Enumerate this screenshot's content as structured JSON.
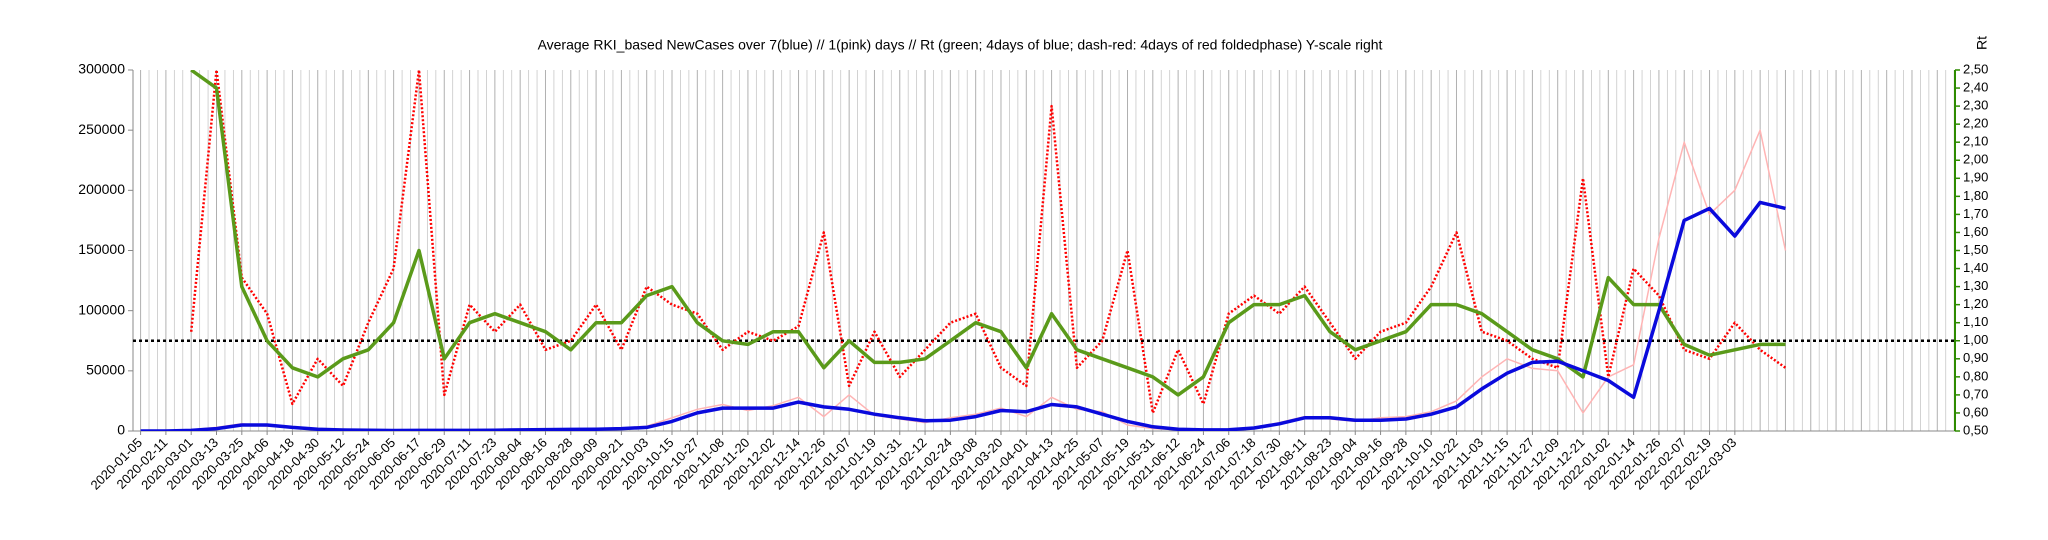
{
  "chart_data": {
    "type": "line",
    "title": "Average RKI_based NewCases over 7(blue) // 1(pink) days //  Rt (green; 4days of blue; dash-red: 4days of red foldedphase) Y-scale right",
    "y2_label": "Rt",
    "categories": [
      "2020-01-05",
      "2020-02-11",
      "2020-03-01",
      "2020-03-13",
      "2020-03-25",
      "2020-04-06",
      "2020-04-18",
      "2020-04-30",
      "2020-05-12",
      "2020-05-24",
      "2020-06-05",
      "2020-06-17",
      "2020-06-29",
      "2020-07-11",
      "2020-07-23",
      "2020-08-04",
      "2020-08-16",
      "2020-08-28",
      "2020-09-09",
      "2020-09-21",
      "2020-10-03",
      "2020-10-15",
      "2020-10-27",
      "2020-11-08",
      "2020-11-20",
      "2020-12-02",
      "2020-12-14",
      "2020-12-26",
      "2021-01-07",
      "2021-01-19",
      "2021-01-31",
      "2021-02-12",
      "2021-02-24",
      "2021-03-08",
      "2021-03-20",
      "2021-04-01",
      "2021-04-13",
      "2021-04-25",
      "2021-05-07",
      "2021-05-19",
      "2021-05-31",
      "2021-06-12",
      "2021-06-24",
      "2021-07-06",
      "2021-07-18",
      "2021-07-30",
      "2021-08-11",
      "2021-08-23",
      "2021-09-04",
      "2021-09-16",
      "2021-09-28",
      "2021-10-10",
      "2021-10-22",
      "2021-11-03",
      "2021-11-15",
      "2021-11-27",
      "2021-12-09",
      "2021-12-21",
      "2022-01-02",
      "2022-01-14",
      "2022-01-26",
      "2022-02-07",
      "2022-02-19",
      "2022-03-03",
      null,
      null,
      null,
      null,
      null,
      null,
      null,
      null
    ],
    "series": [
      {
        "color": "#ffb4b4",
        "values": [
          0,
          0,
          1000,
          3000,
          6000,
          4000,
          3500,
          1000,
          1000,
          500,
          300,
          800,
          400,
          600,
          800,
          1000,
          1500,
          1200,
          1800,
          2500,
          4000,
          11000,
          18000,
          22000,
          17000,
          21000,
          28000,
          12000,
          30000,
          13000,
          10000,
          7000,
          11000,
          14000,
          19000,
          12000,
          28000,
          18000,
          16000,
          5000,
          2000,
          1000,
          700,
          1200,
          3000,
          7000,
          12000,
          10000,
          8000,
          11000,
          12000,
          16000,
          25000,
          45000,
          60000,
          52000,
          50000,
          15000,
          45000,
          55000,
          160000,
          240000,
          180000,
          200000,
          250000,
          150000,
          null,
          null,
          null,
          null,
          null,
          null
        ]
      },
      {
        "color": "#ff0000",
        "axis": "y2",
        "dashed": true,
        "values": [
          null,
          null,
          1.05,
          2.5,
          1.35,
          1.15,
          0.65,
          0.9,
          0.75,
          1.1,
          1.4,
          2.5,
          0.7,
          1.2,
          1.05,
          1.2,
          0.95,
          1.0,
          1.2,
          0.95,
          1.3,
          1.2,
          1.15,
          0.95,
          1.05,
          1.0,
          1.08,
          1.6,
          0.75,
          1.05,
          0.8,
          0.95,
          1.1,
          1.15,
          0.85,
          0.75,
          2.3,
          0.85,
          1.0,
          1.5,
          0.6,
          0.95,
          0.65,
          1.15,
          1.25,
          1.15,
          1.3,
          1.1,
          0.9,
          1.05,
          1.1,
          1.3,
          1.6,
          1.05,
          1.0,
          0.9,
          0.85,
          1.9,
          0.8,
          1.4,
          1.25,
          0.95,
          0.9,
          1.1,
          0.95,
          0.85,
          null,
          null,
          null,
          null,
          null,
          null
        ]
      },
      {
        "color": "#5a9a1a",
        "axis": "y2",
        "values": [
          null,
          null,
          2.5,
          2.4,
          1.3,
          1.0,
          0.85,
          0.8,
          0.9,
          0.95,
          1.1,
          1.5,
          0.9,
          1.1,
          1.15,
          1.1,
          1.05,
          0.95,
          1.1,
          1.1,
          1.25,
          1.3,
          1.1,
          1.0,
          0.98,
          1.05,
          1.05,
          0.85,
          1.0,
          0.88,
          0.88,
          0.9,
          1.0,
          1.1,
          1.05,
          0.85,
          1.15,
          0.95,
          0.9,
          0.85,
          0.8,
          0.7,
          0.8,
          1.1,
          1.2,
          1.2,
          1.25,
          1.05,
          0.95,
          1.0,
          1.05,
          1.2,
          1.2,
          1.15,
          1.05,
          0.95,
          0.9,
          0.8,
          1.35,
          1.2,
          1.2,
          0.98,
          0.92,
          0.95,
          0.98,
          0.98,
          null,
          null,
          null,
          null,
          null,
          null
        ]
      },
      {
        "color": "#0a0adc",
        "values": [
          0,
          0,
          500,
          2000,
          5000,
          5000,
          3000,
          1500,
          800,
          600,
          400,
          500,
          500,
          500,
          700,
          900,
          1200,
          1300,
          1500,
          2000,
          3000,
          8000,
          15000,
          19000,
          19000,
          19000,
          24000,
          20000,
          18000,
          14000,
          11000,
          8500,
          9000,
          12000,
          17000,
          16000,
          22000,
          20000,
          14000,
          8000,
          3500,
          1500,
          900,
          1000,
          2500,
          6000,
          11000,
          11000,
          9000,
          9000,
          10000,
          14000,
          20000,
          35000,
          48000,
          57000,
          58000,
          50000,
          42000,
          28000,
          100000,
          175000,
          185000,
          162000,
          190000,
          185000,
          null,
          null,
          null,
          null,
          null,
          null
        ]
      }
    ],
    "hline": {
      "value": 1,
      "axis": "y2",
      "color": "#000000"
    },
    "ylim": [
      0,
      300000
    ],
    "yticks": [
      0,
      50000,
      100000,
      150000,
      200000,
      250000,
      300000
    ],
    "y2lim": [
      0.5,
      2.5
    ],
    "y2color": "#2e8b00",
    "y2ticks": [
      {
        "value": 0.5,
        "label": "0,50"
      },
      {
        "value": 0.6,
        "label": "0,60"
      },
      {
        "value": 0.7,
        "label": "0,70"
      },
      {
        "value": 0.8,
        "label": "0,80"
      },
      {
        "value": 0.9,
        "label": "0,90"
      },
      {
        "value": 1.0,
        "label": "1,00"
      },
      {
        "value": 1.1,
        "label": "1,10"
      },
      {
        "value": 1.2,
        "label": "1,20"
      },
      {
        "value": 1.3,
        "label": "1,30"
      },
      {
        "value": 1.4,
        "label": "1,40"
      },
      {
        "value": 1.5,
        "label": "1,50"
      },
      {
        "value": 1.6,
        "label": "1,60"
      },
      {
        "value": 1.7,
        "label": "1,70"
      },
      {
        "value": 1.8,
        "label": "1,80"
      },
      {
        "value": 1.9,
        "label": "1,90"
      },
      {
        "value": 2.0,
        "label": "2,00"
      },
      {
        "value": 2.1,
        "label": "2,10"
      },
      {
        "value": 2.2,
        "label": "2,20"
      },
      {
        "value": 2.3,
        "label": "2,30"
      },
      {
        "value": 2.4,
        "label": "2,40"
      },
      {
        "value": 2.5,
        "label": "2,50"
      }
    ],
    "grid": true
  }
}
